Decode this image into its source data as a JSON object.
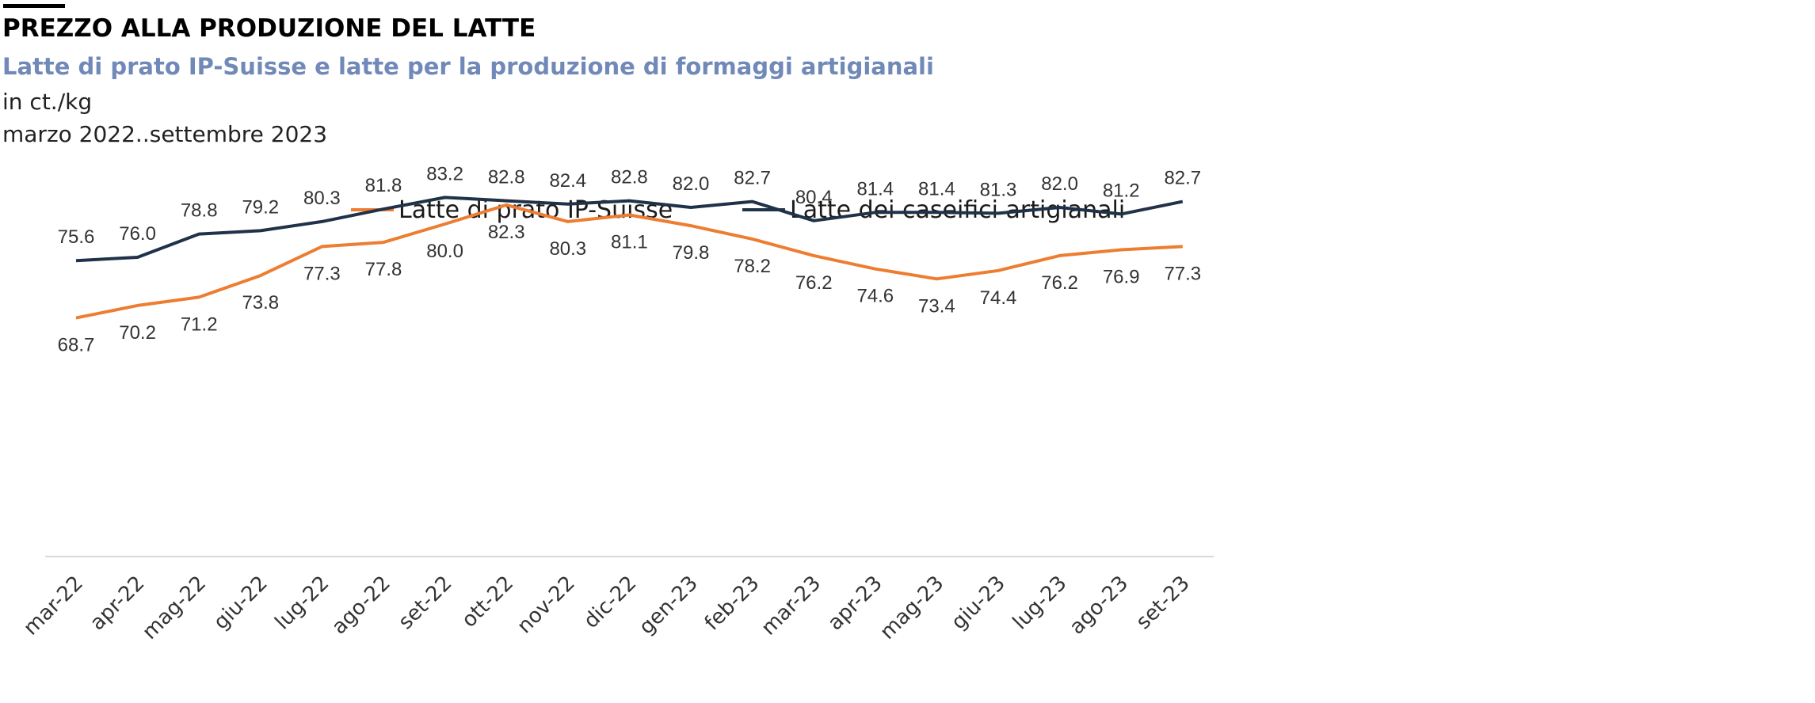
{
  "header": {
    "title": "PREZZO ALLA PRODUZIONE DEL LATTE",
    "subtitle": "Latte di prato IP-Suisse e latte per la produzione di formaggi artigianali",
    "unit": "in ct./kg",
    "period": "marzo 2022..settembre 2023"
  },
  "chart_data": {
    "type": "line",
    "categories": [
      "mar-22",
      "apr-22",
      "mag-22",
      "giu-22",
      "lug-22",
      "ago-22",
      "set-22",
      "ott-22",
      "nov-22",
      "dic-22",
      "gen-23",
      "feb-23",
      "mar-23",
      "apr-23",
      "mag-23",
      "giu-23",
      "lug-23",
      "ago-23",
      "set-23"
    ],
    "series": [
      {
        "name": "Latte di prato IP-Suisse",
        "color": "#ed7d31",
        "label_position": "below",
        "values": [
          68.7,
          70.2,
          71.2,
          73.8,
          77.3,
          77.8,
          80.0,
          82.3,
          80.3,
          81.1,
          79.8,
          78.2,
          76.2,
          74.6,
          73.4,
          74.4,
          76.2,
          76.9,
          77.3
        ],
        "labels": [
          "68.7",
          "70.2",
          "71.2",
          "73.8",
          "77.3",
          "77.8",
          "80.0",
          "82.3",
          "80.3",
          "81.1",
          "79.8",
          "78.2",
          "76.2",
          "74.6",
          "73.4",
          "74.4",
          "76.2",
          "76.9",
          "77.3"
        ]
      },
      {
        "name": "Latte dei caseifici artigianali",
        "color": "#203249",
        "label_position": "above",
        "values": [
          75.6,
          76.0,
          78.8,
          79.2,
          80.3,
          81.8,
          83.2,
          82.8,
          82.4,
          82.8,
          82.0,
          82.7,
          80.4,
          81.4,
          81.4,
          81.3,
          82.0,
          81.2,
          82.7
        ],
        "labels": [
          "75.6",
          "76.0",
          "78.8",
          "79.2",
          "80.3",
          "81.8",
          "83.2",
          "82.8",
          "82.4",
          "82.8",
          "82.0",
          "82.7",
          "80.4",
          "81.4",
          "81.4",
          "81.3",
          "82.0",
          "81.2",
          "82.7"
        ]
      }
    ],
    "ylim": [
      40,
      100
    ],
    "legend_position": "top",
    "grid": false
  }
}
